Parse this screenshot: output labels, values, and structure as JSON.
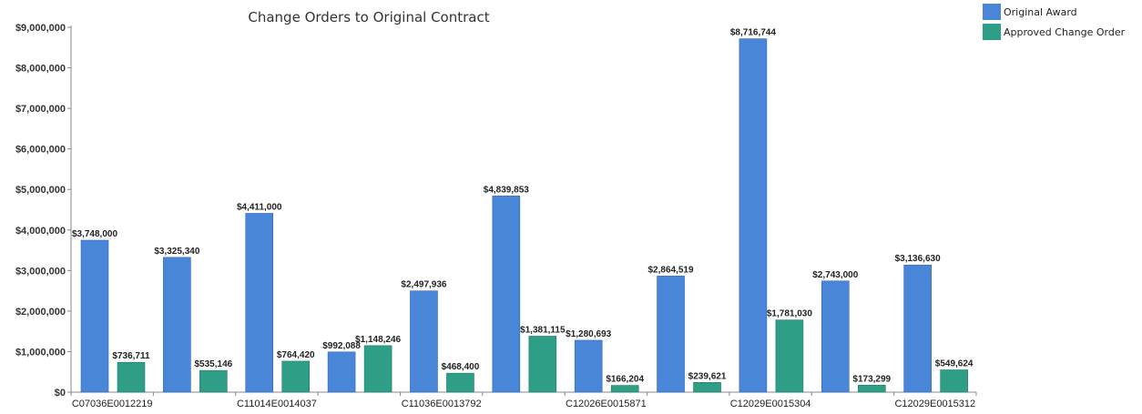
{
  "chart_data": {
    "type": "bar",
    "title": "Change Orders to Original Contract",
    "xlabel": "",
    "ylabel": "",
    "ylim": [
      0,
      9000000
    ],
    "y_ticks": [
      "$0",
      "$1,000,000",
      "$2,000,000",
      "$3,000,000",
      "$4,000,000",
      "$5,000,000",
      "$6,000,000",
      "$7,000,000",
      "$8,000,000",
      "$9,000,000"
    ],
    "categories": [
      "C07036E0012219",
      "",
      "C11014E0014037",
      "",
      "C11036E0013792",
      "",
      "C12026E0015871",
      "",
      "C12029E0015304",
      "",
      "C12029E0015312"
    ],
    "legend_position": "top-right",
    "grid": false,
    "series": [
      {
        "name": "Original Award",
        "color": "#4a86d8",
        "values": [
          3748000,
          3325340,
          4411000,
          992088,
          2497936,
          4839853,
          1280693,
          2864519,
          8716744,
          2743000,
          3136630
        ],
        "labels": [
          "$3,748,000",
          "$3,325,340",
          "$4,411,000",
          "$992,088",
          "$2,497,936",
          "$4,839,853",
          "$1,280,693",
          "$2,864,519",
          "$8,716,744",
          "$2,743,000",
          "$3,136,630"
        ]
      },
      {
        "name": "Approved Change Order",
        "color": "#2f9e86",
        "values": [
          736711,
          535146,
          764420,
          1148246,
          468400,
          1381115,
          166204,
          239621,
          1781030,
          173299,
          549624
        ],
        "labels": [
          "$736,711",
          "$535,146",
          "$764,420",
          "$1,148,246",
          "$468,400",
          "$1,381,115",
          "$166,204",
          "$239,621",
          "$1,781,030",
          "$173,299",
          "$549,624"
        ]
      }
    ]
  }
}
